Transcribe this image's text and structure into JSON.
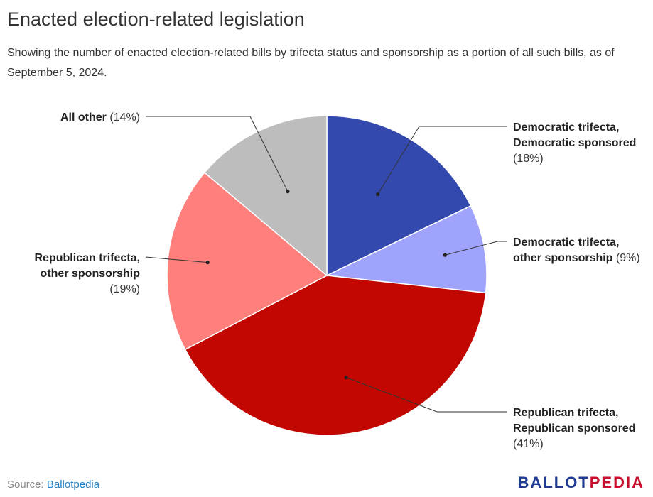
{
  "title": "Enacted election-related legislation",
  "subtitle": "Showing the number of enacted election-related bills by trifecta status and sponsorship as a portion of all such bills, as of September 5, 2024.",
  "source": {
    "prefix": "Source: ",
    "link": "Ballotpedia"
  },
  "logo": {
    "part1": "BALLOT",
    "part2": "PEDIA"
  },
  "chart_data": {
    "type": "pie",
    "title": "Enacted election-related legislation",
    "slices": [
      {
        "label_lines": [
          "Democratic trifecta,",
          "Democratic sponsored"
        ],
        "pct_text": "(18%)",
        "value": 18,
        "color": "#3349ad"
      },
      {
        "label_lines": [
          "Democratic trifecta,",
          "other sponsorship"
        ],
        "pct_text": "(9%)",
        "value": 9,
        "color": "#a0a3fc"
      },
      {
        "label_lines": [
          "Republican trifecta,",
          "Republican sponsored"
        ],
        "pct_text": "(41%)",
        "value": 41,
        "color": "#c10700"
      },
      {
        "label_lines": [
          "Republican trifecta,",
          "other sponsorship"
        ],
        "pct_text": "(19%)",
        "value": 19,
        "color": "#ff7f7d"
      },
      {
        "label_lines": [
          "All other"
        ],
        "pct_text": "(14%)",
        "value": 14,
        "color": "#bdbdbd"
      }
    ]
  }
}
